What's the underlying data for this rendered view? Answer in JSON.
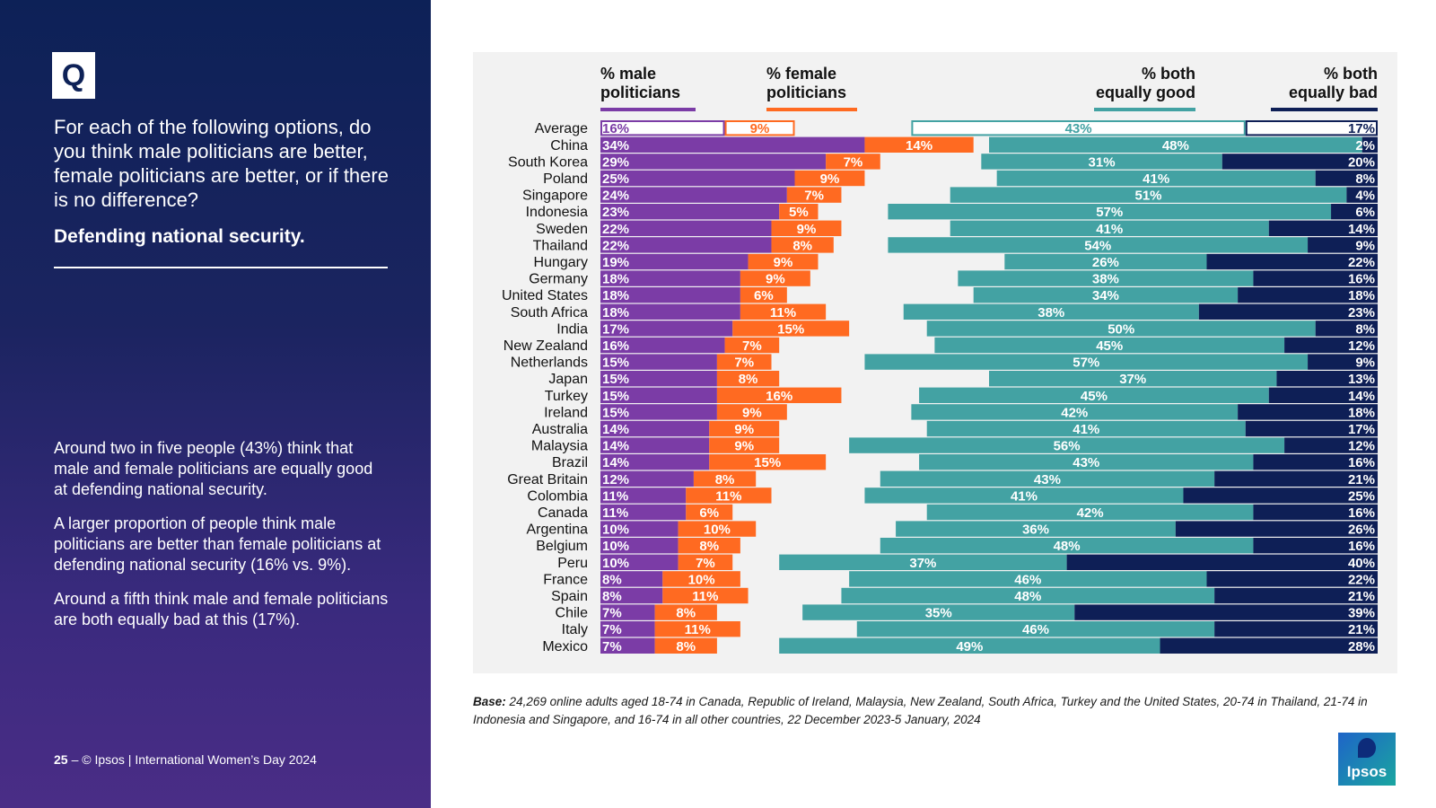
{
  "left_panel": {
    "badge": "Q",
    "question": "For each of the following options, do you think male politicians are better, female politicians are better, or if there is no difference?",
    "subheading": "Defending national security.",
    "notes": [
      "Around two in five people (43%) think that male and female politicians are equally good at defending national security.",
      "A larger proportion of people think male politicians are better than female politicians at defending national security (16% vs. 9%).",
      "Around a fifth think male and female politicians are both equally bad at this (17%)."
    ],
    "footer_page": "25",
    "footer_text": "– © Ipsos | International Women’s Day 2024"
  },
  "base_note": {
    "label": "Base:",
    "text": "24,269 online adults aged 18-74 in Canada, Republic of Ireland, Malaysia, New Zealand, South Africa, Turkey and the United States, 20-74 in Thailand, 21-74 in Indonesia and Singapore, and 16-74 in all other countries, 22 December 2023-5 January, 2024"
  },
  "logo": {
    "text": "Ipsos"
  },
  "chart_data": {
    "type": "bar",
    "orientation": "horizontal",
    "categories": [
      "Average",
      "China",
      "South Korea",
      "Poland",
      "Singapore",
      "Indonesia",
      "Sweden",
      "Thailand",
      "Hungary",
      "Germany",
      "United States",
      "South Africa",
      "India",
      "New Zealand",
      "Netherlands",
      "Japan",
      "Turkey",
      "Ireland",
      "Australia",
      "Malaysia",
      "Brazil",
      "Great Britain",
      "Colombia",
      "Canada",
      "Argentina",
      "Belgium",
      "Peru",
      "France",
      "Spain",
      "Chile",
      "Italy",
      "Mexico"
    ],
    "series": [
      {
        "name": "% male politicians",
        "color": "#7b3ca6",
        "align": "left",
        "values": [
          16,
          34,
          29,
          25,
          24,
          23,
          22,
          22,
          19,
          18,
          18,
          18,
          17,
          16,
          15,
          15,
          15,
          15,
          14,
          14,
          14,
          12,
          11,
          11,
          10,
          10,
          10,
          8,
          8,
          7,
          7,
          7
        ]
      },
      {
        "name": "% female politicians",
        "color": "#ff6a21",
        "align": "left",
        "values": [
          9,
          14,
          7,
          9,
          7,
          5,
          9,
          8,
          9,
          9,
          6,
          11,
          15,
          7,
          7,
          8,
          16,
          9,
          9,
          9,
          15,
          8,
          11,
          6,
          10,
          8,
          7,
          10,
          11,
          8,
          11,
          8
        ]
      },
      {
        "name": "% both equally good",
        "color": "#43a2a3",
        "align": "right",
        "values": [
          43,
          48,
          31,
          41,
          51,
          57,
          41,
          54,
          26,
          38,
          34,
          38,
          50,
          45,
          57,
          37,
          45,
          42,
          41,
          56,
          43,
          43,
          41,
          42,
          36,
          48,
          37,
          46,
          48,
          35,
          46,
          49
        ]
      },
      {
        "name": "% both equally bad",
        "color": "#0e1f56",
        "align": "right",
        "values": [
          17,
          2,
          20,
          8,
          4,
          6,
          14,
          9,
          22,
          16,
          18,
          23,
          8,
          12,
          9,
          13,
          14,
          18,
          17,
          12,
          16,
          21,
          25,
          16,
          26,
          16,
          40,
          22,
          21,
          39,
          21,
          28
        ]
      }
    ],
    "value_suffix": "%",
    "highlight_first_row": true,
    "legend_position": "top",
    "grid": false
  }
}
